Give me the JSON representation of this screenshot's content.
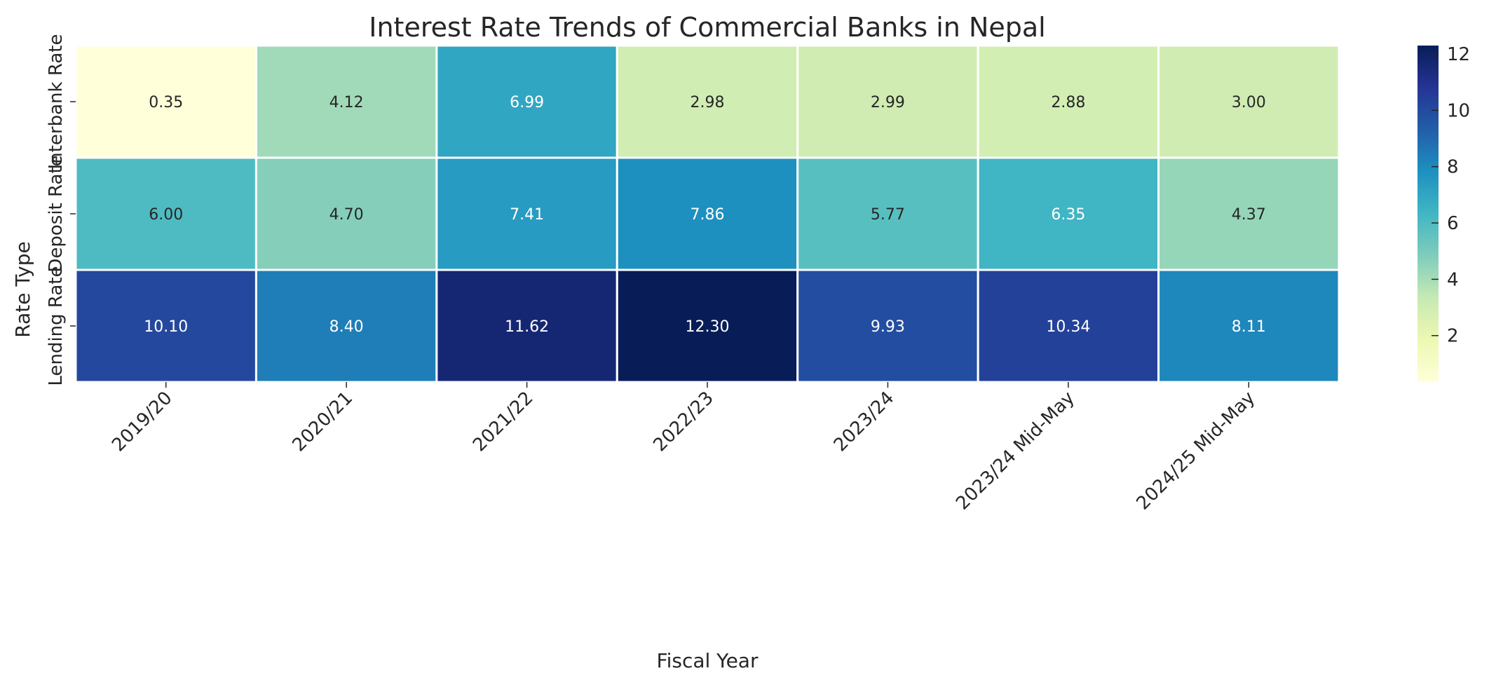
{
  "chart_data": {
    "type": "heatmap",
    "title": "Interest Rate Trends of Commercial Banks in Nepal",
    "xlabel": "Fiscal Year",
    "ylabel": "Rate Type",
    "x_categories": [
      "2019/20",
      "2020/21",
      "2021/22",
      "2022/23",
      "2023/24",
      "2023/24 Mid-May",
      "2024/25 Mid-May"
    ],
    "y_categories": [
      "Interbank Rate",
      "Deposit Rate",
      "Lending Rate"
    ],
    "values": [
      [
        0.35,
        4.12,
        6.99,
        2.98,
        2.99,
        2.88,
        3.0
      ],
      [
        6.0,
        4.7,
        7.41,
        7.86,
        5.77,
        6.35,
        4.37
      ],
      [
        10.1,
        8.4,
        11.62,
        12.3,
        9.93,
        10.34,
        8.11
      ]
    ],
    "value_format": "0.00",
    "colormap": "YlGnBu",
    "colormap_stops": [
      "#ffffd9",
      "#edf8b1",
      "#c7e9b4",
      "#7fcdbb",
      "#41b6c4",
      "#1d91c0",
      "#225ea8",
      "#253494",
      "#081d58"
    ],
    "color_range": [
      0.35,
      12.3
    ],
    "colorbar_ticks": [
      2,
      4,
      6,
      8,
      10,
      12
    ],
    "colorbar_tick_labels": [
      "2",
      "4",
      "6",
      "8",
      "10",
      "12"
    ],
    "colorbar_placement": "right",
    "grid_lines_color": "#ffffff"
  }
}
